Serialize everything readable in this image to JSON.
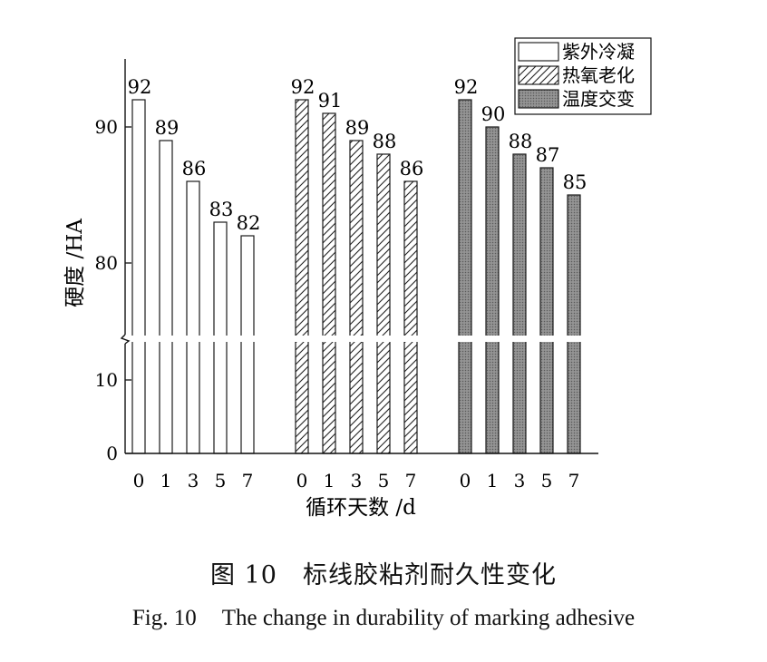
{
  "chart_data": {
    "type": "bar",
    "ylabel": "硬度 /HA",
    "xlabel": "循环天数 /d",
    "y_axis_break": true,
    "y_ticks_lower": [
      0,
      10
    ],
    "y_ticks_upper": [
      80,
      90
    ],
    "ylim_lower": [
      0,
      15
    ],
    "ylim_upper": [
      75,
      95
    ],
    "categories": [
      "0",
      "1",
      "3",
      "5",
      "7"
    ],
    "legend_position": "top-right",
    "series": [
      {
        "name": "紫外冷凝",
        "pattern": "empty",
        "values": [
          92,
          89,
          86,
          83,
          82
        ]
      },
      {
        "name": "热氧老化",
        "pattern": "hatched",
        "values": [
          92,
          91,
          89,
          88,
          86
        ]
      },
      {
        "name": "温度交变",
        "pattern": "dotted-gray",
        "values": [
          92,
          90,
          88,
          87,
          85
        ]
      }
    ],
    "colors": {
      "outline": "#1a1a1a",
      "gray_fill": "#8a8a8a",
      "background": "#ffffff"
    }
  },
  "caption": {
    "cn_label": "图 10",
    "cn_title": "标线胶粘剂耐久性变化",
    "en_label": "Fig. 10",
    "en_title": "The change in durability of marking adhesive"
  }
}
